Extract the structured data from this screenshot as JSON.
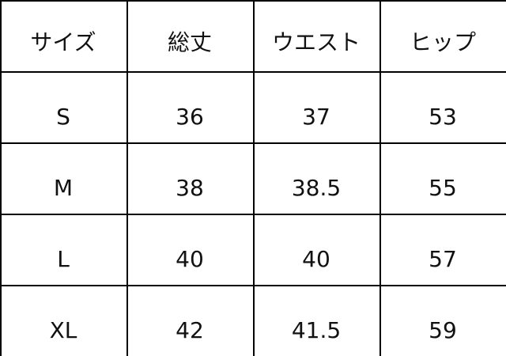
{
  "table": {
    "headers": [
      "サイズ",
      "総丈",
      "ウエスト",
      "ヒップ"
    ],
    "rows": [
      [
        "S",
        "36",
        "37",
        "53"
      ],
      [
        "M",
        "38",
        "38.5",
        "55"
      ],
      [
        "L",
        "40",
        "40",
        "57"
      ],
      [
        "XL",
        "42",
        "41.5",
        "59"
      ]
    ]
  }
}
